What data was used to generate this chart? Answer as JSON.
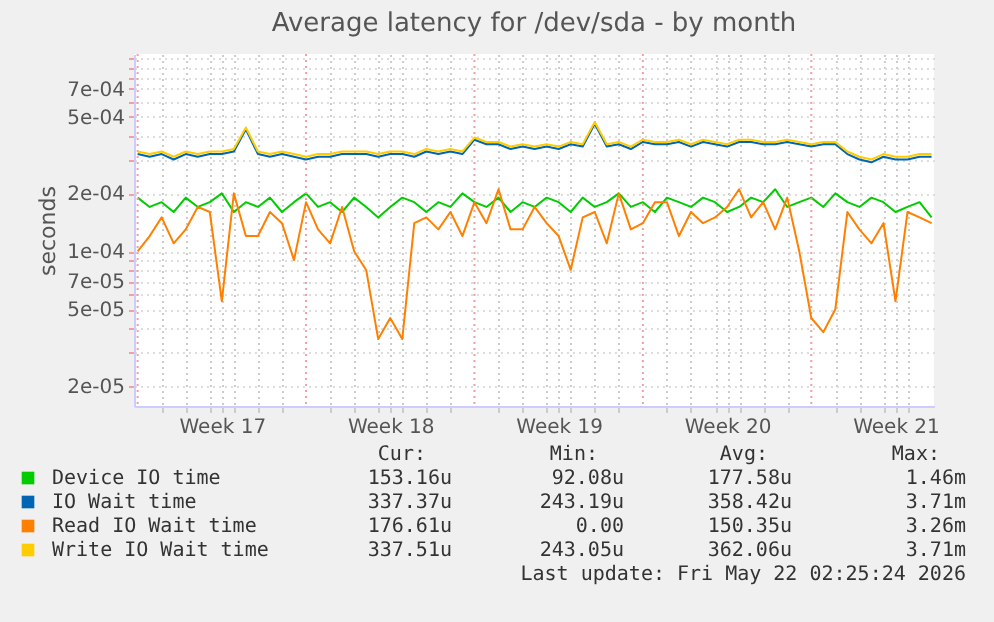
{
  "chart_data": {
    "type": "line",
    "title": "Average latency for /dev/sda - by month",
    "ylabel": "seconds",
    "x": [
      "2026-04-19T00:00",
      "2026-04-19T12:00",
      "2026-04-20T00:00",
      "2026-04-20T12:00",
      "2026-04-21T00:00",
      "2026-04-21T12:00",
      "2026-04-22T00:00",
      "2026-04-22T12:00",
      "2026-04-23T00:00",
      "2026-04-23T12:00",
      "2026-04-24T00:00",
      "2026-04-24T12:00",
      "2026-04-25T00:00",
      "2026-04-25T12:00",
      "2026-04-26T00:00",
      "2026-04-26T12:00",
      "2026-04-27T00:00",
      "2026-04-27T12:00",
      "2026-04-28T00:00",
      "2026-04-28T12:00",
      "2026-04-29T00:00",
      "2026-04-29T12:00",
      "2026-04-30T00:00",
      "2026-04-30T12:00",
      "2026-05-01T00:00",
      "2026-05-01T12:00",
      "2026-05-02T00:00",
      "2026-05-02T12:00",
      "2026-05-03T00:00",
      "2026-05-03T12:00",
      "2026-05-04T00:00",
      "2026-05-04T12:00",
      "2026-05-05T00:00",
      "2026-05-05T12:00",
      "2026-05-06T00:00",
      "2026-05-06T12:00",
      "2026-05-07T00:00",
      "2026-05-07T12:00",
      "2026-05-08T00:00",
      "2026-05-08T12:00",
      "2026-05-09T00:00",
      "2026-05-09T12:00",
      "2026-05-10T00:00",
      "2026-05-10T12:00",
      "2026-05-11T00:00",
      "2026-05-11T12:00",
      "2026-05-12T00:00",
      "2026-05-12T12:00",
      "2026-05-13T00:00",
      "2026-05-13T12:00",
      "2026-05-14T00:00",
      "2026-05-14T12:00",
      "2026-05-15T00:00",
      "2026-05-15T12:00",
      "2026-05-16T00:00",
      "2026-05-16T12:00",
      "2026-05-17T00:00",
      "2026-05-17T12:00",
      "2026-05-18T00:00",
      "2026-05-18T12:00",
      "2026-05-19T00:00",
      "2026-05-19T12:00",
      "2026-05-20T00:00",
      "2026-05-20T12:00",
      "2026-05-21T00:00",
      "2026-05-21T12:00",
      "2026-05-22T00:00"
    ],
    "xlim": [
      "2026-04-18T20:24",
      "2026-05-22T02:25"
    ],
    "xticks": [
      {
        "value": "2026-04-20",
        "label": null
      },
      {
        "value": "2026-04-21",
        "label": null
      },
      {
        "value": "2026-04-22",
        "label": null
      },
      {
        "value": "2026-04-22T12:00",
        "label": "Week 17"
      },
      {
        "value": "2026-04-23",
        "label": null
      },
      {
        "value": "2026-04-24",
        "label": null
      },
      {
        "value": "2026-04-25",
        "label": null
      },
      {
        "value": "2026-04-27",
        "label": null
      },
      {
        "value": "2026-04-28",
        "label": null
      },
      {
        "value": "2026-04-29",
        "label": null
      },
      {
        "value": "2026-04-29T12:00",
        "label": "Week 18"
      },
      {
        "value": "2026-04-30",
        "label": null
      },
      {
        "value": "2026-05-01",
        "label": null
      },
      {
        "value": "2026-05-02",
        "label": null
      },
      {
        "value": "2026-05-04",
        "label": null
      },
      {
        "value": "2026-05-05",
        "label": null
      },
      {
        "value": "2026-05-06",
        "label": null
      },
      {
        "value": "2026-05-06T12:00",
        "label": "Week 19"
      },
      {
        "value": "2026-05-07",
        "label": null
      },
      {
        "value": "2026-05-08",
        "label": null
      },
      {
        "value": "2026-05-09",
        "label": null
      },
      {
        "value": "2026-05-11",
        "label": null
      },
      {
        "value": "2026-05-12",
        "label": null
      },
      {
        "value": "2026-05-13",
        "label": null
      },
      {
        "value": "2026-05-13T12:00",
        "label": "Week 20"
      },
      {
        "value": "2026-05-14",
        "label": null
      },
      {
        "value": "2026-05-15",
        "label": null
      },
      {
        "value": "2026-05-16",
        "label": null
      },
      {
        "value": "2026-05-18",
        "label": null
      },
      {
        "value": "2026-05-19",
        "label": null
      },
      {
        "value": "2026-05-20",
        "label": null
      },
      {
        "value": "2026-05-20T12:00",
        "label": "Week 21"
      },
      {
        "value": "2026-05-21",
        "label": null
      }
    ],
    "log": true,
    "ylim": [
      1.57e-05,
      0.00106
    ],
    "yticks": [
      {
        "value": 2e-05,
        "label": "2e-05"
      },
      {
        "value": 3e-05,
        "label": null
      },
      {
        "value": 4e-05,
        "label": null
      },
      {
        "value": 5e-05,
        "label": "5e-05"
      },
      {
        "value": 6e-05,
        "label": null
      },
      {
        "value": 7e-05,
        "label": "7e-05"
      },
      {
        "value": 8e-05,
        "label": null
      },
      {
        "value": 9e-05,
        "label": null
      },
      {
        "value": 0.0001,
        "label": "1e-04"
      },
      {
        "value": 0.0002,
        "label": "2e-04"
      },
      {
        "value": 0.0003,
        "label": null
      },
      {
        "value": 0.0004,
        "label": null
      },
      {
        "value": 0.0005,
        "label": "5e-04"
      },
      {
        "value": 0.0006,
        "label": null
      },
      {
        "value": 0.0007,
        "label": "7e-04"
      },
      {
        "value": 0.0008,
        "label": null
      },
      {
        "value": 0.0009,
        "label": null
      },
      {
        "value": 0.001,
        "label": null
      }
    ],
    "grid": true,
    "legend": "bottom",
    "ref_lines": [
      {
        "axis": "x",
        "value": "2026-04-19",
        "color": "#f0a0a0",
        "line_style": "dotted"
      },
      {
        "axis": "x",
        "value": "2026-04-26",
        "color": "#f0a0a0",
        "line_style": "dotted"
      },
      {
        "axis": "x",
        "value": "2026-05-03",
        "color": "#f0a0a0",
        "line_style": "dotted"
      },
      {
        "axis": "x",
        "value": "2026-05-10",
        "color": "#f0a0a0",
        "line_style": "dotted"
      },
      {
        "axis": "x",
        "value": "2026-05-17",
        "color": "#f0a0a0",
        "line_style": "dotted"
      }
    ],
    "series": [
      {
        "name": "Device IO time",
        "color": "#00cc00",
        "values": [
          0.00019,
          0.00017,
          0.00018,
          0.00016,
          0.00019,
          0.00017,
          0.00018,
          0.0002,
          0.00016,
          0.00018,
          0.00017,
          0.00019,
          0.00016,
          0.00018,
          0.0002,
          0.00017,
          0.00018,
          0.00016,
          0.00019,
          0.00017,
          0.00015,
          0.00017,
          0.00019,
          0.00018,
          0.00016,
          0.00018,
          0.00017,
          0.0002,
          0.00018,
          0.00017,
          0.00019,
          0.00016,
          0.00018,
          0.00017,
          0.00019,
          0.00018,
          0.00016,
          0.00019,
          0.00017,
          0.00018,
          0.0002,
          0.00017,
          0.00018,
          0.00016,
          0.00019,
          0.00018,
          0.00017,
          0.00019,
          0.00018,
          0.00016,
          0.00017,
          0.00019,
          0.00018,
          0.00021,
          0.00017,
          0.00018,
          0.00019,
          0.00017,
          0.0002,
          0.00018,
          0.00017,
          0.00019,
          0.00018,
          0.00016,
          0.00017,
          0.00018,
          0.00015
        ]
      },
      {
        "name": "IO Wait time",
        "color": "#0066b3",
        "values": [
          0.00032,
          0.00031,
          0.00032,
          0.0003,
          0.00032,
          0.00031,
          0.00032,
          0.00032,
          0.00033,
          0.00043,
          0.00032,
          0.00031,
          0.00032,
          0.00031,
          0.0003,
          0.00031,
          0.00031,
          0.00032,
          0.00032,
          0.00032,
          0.00031,
          0.00032,
          0.00032,
          0.00031,
          0.00033,
          0.00032,
          0.00033,
          0.00032,
          0.00038,
          0.00036,
          0.00036,
          0.00034,
          0.00035,
          0.00034,
          0.00035,
          0.00034,
          0.00036,
          0.00035,
          0.00046,
          0.00035,
          0.00036,
          0.00034,
          0.00037,
          0.00036,
          0.00036,
          0.00037,
          0.00035,
          0.00037,
          0.00036,
          0.00035,
          0.00037,
          0.00037,
          0.00036,
          0.00036,
          0.00037,
          0.00036,
          0.00035,
          0.00036,
          0.00036,
          0.00032,
          0.0003,
          0.00029,
          0.00031,
          0.0003,
          0.0003,
          0.00031,
          0.00031
        ]
      },
      {
        "name": "Read IO Wait time",
        "color": "#ff8000",
        "values": [
          0.0001,
          0.00012,
          0.00015,
          0.00011,
          0.00013,
          0.00017,
          0.00016,
          5.5e-05,
          0.0002,
          0.00012,
          0.00012,
          0.00016,
          0.00014,
          9e-05,
          0.00018,
          0.00013,
          0.00011,
          0.00017,
          0.0001,
          8e-05,
          3.5e-05,
          4.5e-05,
          3.5e-05,
          0.00014,
          0.00015,
          0.00013,
          0.00016,
          0.00012,
          0.00018,
          0.00014,
          0.00021,
          0.00013,
          0.00013,
          0.00017,
          0.00014,
          0.00012,
          8e-05,
          0.00015,
          0.00016,
          0.00011,
          0.0002,
          0.00013,
          0.00014,
          0.00018,
          0.00018,
          0.00012,
          0.00016,
          0.00014,
          0.00015,
          0.00017,
          0.00021,
          0.00015,
          0.00018,
          0.00013,
          0.00019,
          0.0001,
          4.5e-05,
          3.8e-05,
          5e-05,
          0.00016,
          0.00013,
          0.00011,
          0.00014,
          5.5e-05,
          0.00016,
          0.00015,
          0.00014
        ]
      },
      {
        "name": "Write IO Wait time",
        "color": "#ffcc00",
        "values": [
          0.00033,
          0.00032,
          0.00033,
          0.00031,
          0.00033,
          0.00032,
          0.00033,
          0.00033,
          0.00034,
          0.00044,
          0.00033,
          0.00032,
          0.00033,
          0.00032,
          0.00031,
          0.00032,
          0.00032,
          0.00033,
          0.00033,
          0.00033,
          0.00032,
          0.00033,
          0.00033,
          0.00032,
          0.00034,
          0.00033,
          0.00034,
          0.00033,
          0.00039,
          0.00037,
          0.00037,
          0.00035,
          0.00036,
          0.00035,
          0.00036,
          0.00035,
          0.00037,
          0.00036,
          0.00047,
          0.00036,
          0.00037,
          0.00035,
          0.00038,
          0.00037,
          0.00037,
          0.00038,
          0.00036,
          0.00038,
          0.00037,
          0.00036,
          0.00038,
          0.00038,
          0.00037,
          0.00037,
          0.00038,
          0.00037,
          0.00036,
          0.00037,
          0.00037,
          0.00033,
          0.00031,
          0.0003,
          0.00032,
          0.00031,
          0.00031,
          0.00032,
          0.00032
        ]
      }
    ],
    "annotations": [
      "Cur:",
      "Min:",
      "Avg:",
      "Max:",
      "153.16u",
      "92.08u",
      "177.58u",
      "1.46m",
      "337.37u",
      "243.19u",
      "358.42u",
      "3.71m",
      "176.61u",
      "0.00",
      "150.35u",
      "3.26m",
      "337.51u",
      "243.05u",
      "362.06u",
      "3.71m",
      "Last update: Fri May 22 02:25:24 2026"
    ]
  }
}
